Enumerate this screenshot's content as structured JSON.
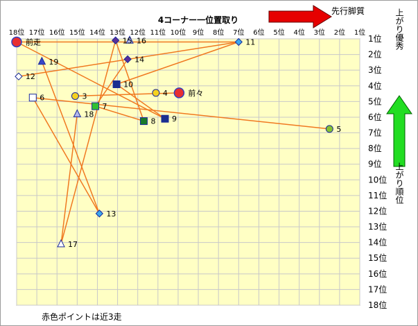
{
  "chart_data": {
    "type": "scatter",
    "title": "4コーナー一位置取り",
    "x_axis_title": "先行脚質",
    "y_axis_title_top": "上がり優秀",
    "y_axis_title_bottom": "上がり順位",
    "footnote": "赤色ポイントは近3走",
    "x_reversed": true,
    "xlim": [
      18,
      1
    ],
    "ylim": [
      1,
      18
    ],
    "x_ticks": [
      "18位",
      "17位",
      "16位",
      "15位",
      "14位",
      "13位",
      "12位",
      "11位",
      "10位",
      "9位",
      "8位",
      "7位",
      "6位",
      "5位",
      "4位",
      "3位",
      "2位",
      "1位"
    ],
    "y_ticks": [
      "1位",
      "2位",
      "3位",
      "4位",
      "5位",
      "6位",
      "7位",
      "8位",
      "9位",
      "10位",
      "11位",
      "12位",
      "13位",
      "14位",
      "15位",
      "16位",
      "17位",
      "18位"
    ],
    "line_color": "#f07820",
    "points": [
      {
        "label": "前走",
        "x": 18.0,
        "y": 1.2,
        "marker": "circle-big",
        "fill": "#e83030"
      },
      {
        "label": "前々",
        "x": 9.95,
        "y": 4.45,
        "marker": "circle-big",
        "fill": "#e83030"
      },
      {
        "label": "3",
        "x": 15.1,
        "y": 4.65,
        "marker": "circle",
        "fill": "#f5d21e"
      },
      {
        "label": "4",
        "x": 11.1,
        "y": 4.45,
        "marker": "circle",
        "fill": "#f5d21e"
      },
      {
        "label": "5",
        "x": 2.5,
        "y": 6.75,
        "marker": "circle",
        "fill": "#86c232"
      },
      {
        "label": "6",
        "x": 17.2,
        "y": 4.75,
        "marker": "square",
        "fill": "#ffffff"
      },
      {
        "label": "7",
        "x": 14.1,
        "y": 5.3,
        "marker": "square",
        "fill": "#30c030"
      },
      {
        "label": "8",
        "x": 11.7,
        "y": 6.25,
        "marker": "square",
        "fill": "#1a7a2a"
      },
      {
        "label": "9",
        "x": 10.65,
        "y": 6.1,
        "marker": "square",
        "fill": "#1a2f8f"
      },
      {
        "label": "10",
        "x": 13.05,
        "y": 3.9,
        "marker": "square",
        "fill": "#1a2f8f"
      },
      {
        "label": "11",
        "x": 7.0,
        "y": 1.2,
        "marker": "diamond",
        "fill": "#3aa8ee"
      },
      {
        "label": "12",
        "x": 17.9,
        "y": 3.4,
        "marker": "diamond",
        "fill": "#ffffff"
      },
      {
        "label": "13",
        "x": 13.9,
        "y": 12.15,
        "marker": "diamond",
        "fill": "#3aa8ee"
      },
      {
        "label": "14",
        "x": 12.5,
        "y": 2.3,
        "marker": "diamond",
        "fill": "#5a2e9a"
      },
      {
        "label": "15",
        "x": 13.1,
        "y": 1.1,
        "marker": "diamond",
        "fill": "#5a2e9a"
      },
      {
        "label": "16",
        "x": 12.4,
        "y": 1.1,
        "marker": "triangle",
        "fill": "#b3b8ec"
      },
      {
        "label": "17",
        "x": 15.8,
        "y": 14.1,
        "marker": "triangle",
        "fill": "#ffffff"
      },
      {
        "label": "18",
        "x": 15.0,
        "y": 5.8,
        "marker": "triangle",
        "fill": "#b3b8ec"
      },
      {
        "label": "19",
        "x": 16.75,
        "y": 2.45,
        "marker": "triangle",
        "fill": "#3a48c8"
      }
    ],
    "lines": [
      [
        18.0,
        1.2,
        7.0,
        1.2
      ],
      [
        17.9,
        3.4,
        7.0,
        1.2
      ],
      [
        18.0,
        1.2,
        10.65,
        6.1
      ],
      [
        13.05,
        3.9,
        7.0,
        1.2
      ],
      [
        17.2,
        4.75,
        2.5,
        6.75
      ],
      [
        17.2,
        4.75,
        13.9,
        12.15
      ],
      [
        16.75,
        2.45,
        13.9,
        12.15
      ],
      [
        15.1,
        4.65,
        9.95,
        4.45
      ],
      [
        15.8,
        14.1,
        15.0,
        5.8
      ],
      [
        15.8,
        14.1,
        13.1,
        1.1
      ],
      [
        13.1,
        1.1,
        11.7,
        6.25
      ],
      [
        12.5,
        2.3,
        14.1,
        5.3
      ],
      [
        14.1,
        5.3,
        11.7,
        6.25
      ],
      [
        13.05,
        3.9,
        10.65,
        6.1
      ]
    ],
    "grid": true
  },
  "colors": {
    "plot_background": "#ffffc4",
    "grid": "#c8c8c8",
    "arrow_red": "#e60000",
    "arrow_green": "#22dd22"
  }
}
